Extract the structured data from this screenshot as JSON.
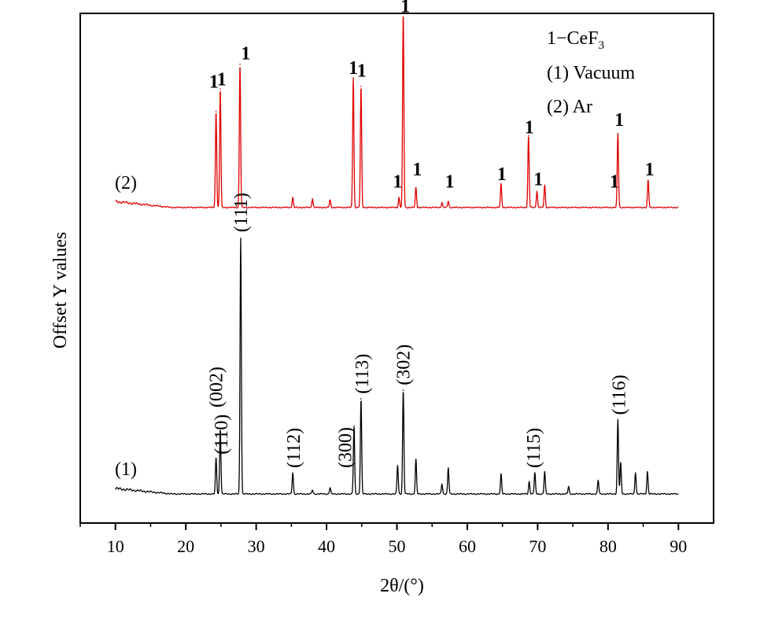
{
  "chart_data": {
    "type": "line",
    "xlabel": "2θ/(°)",
    "ylabel": "Offset Y values",
    "xlim": [
      5,
      95
    ],
    "xticks": [
      10,
      20,
      30,
      40,
      50,
      60,
      70,
      80,
      90
    ],
    "yticks_shown": false,
    "grid": false,
    "legend_position": "top-right",
    "legend": [
      {
        "prefix": "1−CeF",
        "sub": "3"
      },
      {
        "text": "(1) Vacuum"
      },
      {
        "text": "(2) Ar"
      }
    ],
    "phase_marker": "1",
    "series": [
      {
        "name": "(1)",
        "color": "#000000",
        "offset": 0,
        "baseline_start": 0.22,
        "baseline_end": 0.0,
        "peaks": [
          {
            "x": 24.3,
            "h": 1.45
          },
          {
            "x": 24.9,
            "h": 2.65
          },
          {
            "x": 27.8,
            "h": 10.35
          },
          {
            "x": 35.2,
            "h": 0.85
          },
          {
            "x": 38.0,
            "h": 0.15
          },
          {
            "x": 40.5,
            "h": 0.25
          },
          {
            "x": 43.9,
            "h": 2.75
          },
          {
            "x": 44.9,
            "h": 3.85
          },
          {
            "x": 50.1,
            "h": 1.15
          },
          {
            "x": 50.9,
            "h": 4.2
          },
          {
            "x": 52.7,
            "h": 1.4
          },
          {
            "x": 56.4,
            "h": 0.4
          },
          {
            "x": 57.3,
            "h": 1.05
          },
          {
            "x": 64.8,
            "h": 0.8
          },
          {
            "x": 68.8,
            "h": 0.5
          },
          {
            "x": 69.6,
            "h": 0.85
          },
          {
            "x": 71.0,
            "h": 0.9
          },
          {
            "x": 74.4,
            "h": 0.3
          },
          {
            "x": 78.6,
            "h": 0.55
          },
          {
            "x": 81.4,
            "h": 3.0
          },
          {
            "x": 81.8,
            "h": 1.25
          },
          {
            "x": 83.9,
            "h": 0.85
          },
          {
            "x": 85.6,
            "h": 0.9
          }
        ]
      },
      {
        "name": "(2)",
        "color": "#e00000",
        "offset": 11.6,
        "baseline_start": 0.24,
        "baseline_end": 0.0,
        "peaks": [
          {
            "x": 24.3,
            "h": 3.9
          },
          {
            "x": 24.9,
            "h": 4.8
          },
          {
            "x": 27.7,
            "h": 5.8
          },
          {
            "x": 35.2,
            "h": 0.4
          },
          {
            "x": 38.0,
            "h": 0.35
          },
          {
            "x": 40.5,
            "h": 0.3
          },
          {
            "x": 43.8,
            "h": 5.25
          },
          {
            "x": 44.9,
            "h": 4.9
          },
          {
            "x": 50.3,
            "h": 0.4
          },
          {
            "x": 50.9,
            "h": 7.9
          },
          {
            "x": 52.7,
            "h": 0.8
          },
          {
            "x": 56.4,
            "h": 0.2
          },
          {
            "x": 57.3,
            "h": 0.25
          },
          {
            "x": 64.8,
            "h": 0.95
          },
          {
            "x": 68.7,
            "h": 2.9
          },
          {
            "x": 69.9,
            "h": 0.65
          },
          {
            "x": 71.0,
            "h": 0.9
          },
          {
            "x": 81.4,
            "h": 3.0
          },
          {
            "x": 85.7,
            "h": 1.1
          }
        ]
      }
    ],
    "hkl_labels": [
      {
        "text": "(002)",
        "x": 24.3,
        "y": 3.5
      },
      {
        "text": "(110)",
        "x": 25.0,
        "y": 1.6
      },
      {
        "text": "(111)",
        "x": 27.8,
        "y": 10.6
      },
      {
        "text": "(112)",
        "x": 35.3,
        "y": 1.05
      },
      {
        "text": "(300)",
        "x": 42.6,
        "y": 1.05
      },
      {
        "text": "(113)",
        "x": 45.0,
        "y": 4.05
      },
      {
        "text": "(302)",
        "x": 50.9,
        "y": 4.4
      },
      {
        "text": "(115)",
        "x": 69.4,
        "y": 1.05
      },
      {
        "text": "(116)",
        "x": 81.5,
        "y": 3.2
      }
    ],
    "marker_positions": [
      {
        "x": 24.0,
        "y": 16.45
      },
      {
        "x": 25.1,
        "y": 16.55
      },
      {
        "x": 28.5,
        "y": 17.6
      },
      {
        "x": 43.8,
        "y": 17.0
      },
      {
        "x": 45.0,
        "y": 16.9
      },
      {
        "x": 50.1,
        "y": 12.4
      },
      {
        "x": 51.2,
        "y": 19.5
      },
      {
        "x": 52.9,
        "y": 12.9
      },
      {
        "x": 57.5,
        "y": 12.4
      },
      {
        "x": 64.9,
        "y": 12.7
      },
      {
        "x": 68.8,
        "y": 14.6
      },
      {
        "x": 70.1,
        "y": 12.5
      },
      {
        "x": 80.9,
        "y": 12.4
      },
      {
        "x": 81.6,
        "y": 14.9
      },
      {
        "x": 85.9,
        "y": 12.9
      }
    ]
  }
}
